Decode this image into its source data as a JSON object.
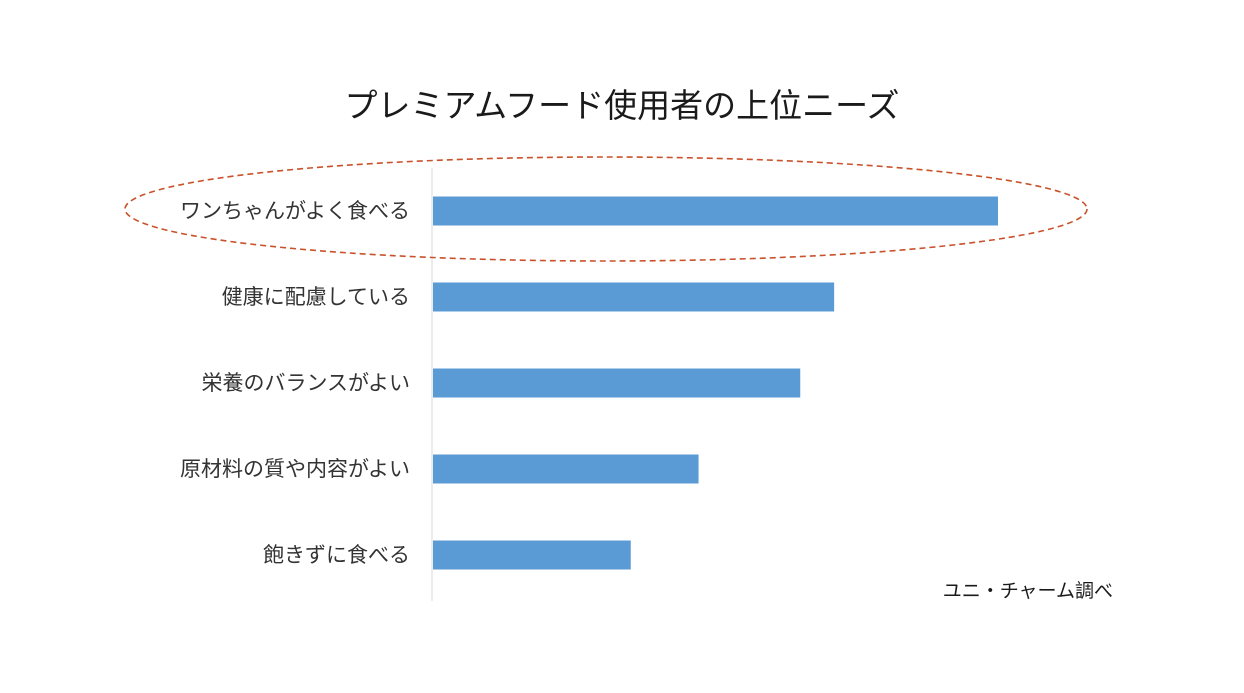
{
  "chart_data": {
    "type": "bar",
    "orientation": "horizontal",
    "title": "プレミアムフード使用者の上位ニーズ",
    "categories": [
      "ワンちゃんがよく食べる",
      "健康に配慮している",
      "栄養のバランスがよい",
      "原材料の質や内容がよい",
      "飽きずに食べる"
    ],
    "values": [
      100,
      71,
      65,
      47,
      35
    ],
    "xlim": [
      0,
      100
    ],
    "grid": false,
    "legend": "none",
    "highlighted_category": "ワンちゃんがよく食べる",
    "source_note": "ユニ・チャーム調べ",
    "colors": {
      "bar": "#5B9BD5",
      "highlight_ellipse": "#C9522B",
      "axis_line": "#D9D9D9"
    }
  }
}
